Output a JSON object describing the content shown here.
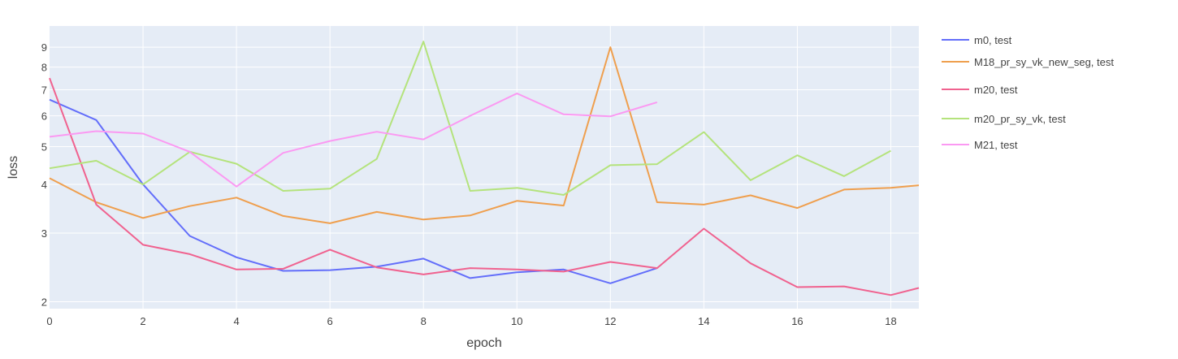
{
  "chart_data": {
    "type": "line",
    "xlabel": "epoch",
    "ylabel": "loss",
    "y_scale": "log",
    "xlim": [
      0,
      18.6
    ],
    "ylim": [
      1.92,
      10.2
    ],
    "x_ticks": [
      0,
      2,
      4,
      6,
      8,
      10,
      12,
      14,
      16,
      18
    ],
    "y_ticks": [
      2,
      3,
      4,
      5,
      6,
      7,
      8,
      9
    ],
    "grid": true,
    "legend_position": "right",
    "plot_background": "#e5ecf6",
    "series": [
      {
        "name": "m0, test",
        "color": "#636efa",
        "x": [
          0,
          1,
          2,
          3,
          4,
          5,
          6,
          7,
          8,
          9,
          10,
          11,
          12,
          13
        ],
        "y": [
          6.6,
          5.85,
          4.0,
          2.95,
          2.6,
          2.4,
          2.41,
          2.46,
          2.58,
          2.3,
          2.38,
          2.42,
          2.23,
          2.44
        ]
      },
      {
        "name": "M18_pr_sy_vk_new_seg, test",
        "color": "#ef9f4e",
        "x": [
          0,
          1,
          2,
          3,
          4,
          5,
          6,
          7,
          8,
          9,
          10,
          11,
          12,
          13,
          14,
          15,
          16,
          17,
          18,
          18.6
        ],
        "y": [
          4.15,
          3.6,
          3.28,
          3.52,
          3.7,
          3.32,
          3.18,
          3.4,
          3.25,
          3.33,
          3.63,
          3.53,
          9.0,
          3.6,
          3.55,
          3.75,
          3.48,
          3.88,
          3.92,
          3.98
        ]
      },
      {
        "name": "m20, test",
        "color": "#f0628f",
        "x": [
          0,
          1,
          2,
          3,
          4,
          5,
          6,
          7,
          8,
          9,
          10,
          11,
          12,
          13,
          14,
          15,
          16,
          17,
          18,
          18.6
        ],
        "y": [
          7.5,
          3.55,
          2.8,
          2.65,
          2.42,
          2.43,
          2.72,
          2.45,
          2.35,
          2.44,
          2.42,
          2.39,
          2.53,
          2.44,
          3.08,
          2.51,
          2.18,
          2.19,
          2.08,
          2.17
        ]
      },
      {
        "name": "m20_pr_sy_vk, test",
        "color": "#b4e37c",
        "x": [
          0,
          1,
          2,
          3,
          4,
          5,
          6,
          7,
          8,
          9,
          10,
          11,
          12,
          13,
          14,
          15,
          16,
          17,
          18
        ],
        "y": [
          4.4,
          4.6,
          4.0,
          4.85,
          4.52,
          3.85,
          3.9,
          4.65,
          9.3,
          3.85,
          3.92,
          3.76,
          4.48,
          4.51,
          5.45,
          4.1,
          4.75,
          4.2,
          4.88
        ]
      },
      {
        "name": "M21, test",
        "color": "#fb99f2",
        "x": [
          0,
          1,
          2,
          3,
          4,
          5,
          6,
          7,
          8,
          9,
          10,
          11,
          12,
          13
        ],
        "y": [
          5.3,
          5.48,
          5.4,
          4.85,
          3.95,
          4.82,
          5.17,
          5.46,
          5.22,
          6.0,
          6.85,
          6.05,
          5.98,
          6.5
        ]
      }
    ]
  }
}
